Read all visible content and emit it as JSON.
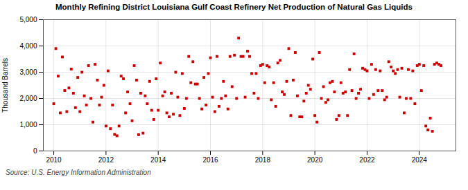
{
  "chart_data": {
    "type": "scatter",
    "title": "Monthly Refining District Louisiana Gulf Coast Refinery Net Production of Natural Gas Liquids",
    "ylabel": "Thousand Barrels",
    "source": "Source: U.S. Energy Information Administration",
    "color": "#cc0000",
    "marker": "square",
    "grid": true,
    "xlim": [
      2009.6,
      2025.4
    ],
    "xticks": [
      2010,
      2012,
      2014,
      2016,
      2018,
      2020,
      2022,
      2024
    ],
    "ylim": [
      0,
      5000
    ],
    "yticks": [
      0,
      {
        "value": 1000,
        "label": "1,000"
      },
      {
        "value": 2000,
        "label": "2,000"
      },
      {
        "value": 3000,
        "label": "3,000"
      },
      {
        "value": 4000,
        "label": "4,000"
      },
      {
        "value": 5000,
        "label": "5,000"
      }
    ],
    "x": [
      2010.0,
      2010.08,
      2010.17,
      2010.25,
      2010.33,
      2010.42,
      2010.5,
      2010.58,
      2010.67,
      2010.75,
      2010.83,
      2010.92,
      2011.0,
      2011.08,
      2011.17,
      2011.25,
      2011.33,
      2011.42,
      2011.5,
      2011.58,
      2011.67,
      2011.75,
      2011.83,
      2011.92,
      2012.0,
      2012.08,
      2012.17,
      2012.25,
      2012.33,
      2012.42,
      2012.5,
      2012.58,
      2012.67,
      2012.75,
      2012.83,
      2012.92,
      2013.0,
      2013.08,
      2013.17,
      2013.25,
      2013.33,
      2013.42,
      2013.5,
      2013.58,
      2013.67,
      2013.75,
      2013.83,
      2013.92,
      2014.0,
      2014.08,
      2014.17,
      2014.25,
      2014.33,
      2014.42,
      2014.5,
      2014.58,
      2014.67,
      2014.75,
      2014.83,
      2014.92,
      2015.0,
      2015.08,
      2015.17,
      2015.25,
      2015.33,
      2015.42,
      2015.5,
      2015.58,
      2015.67,
      2015.75,
      2015.83,
      2015.92,
      2016.0,
      2016.08,
      2016.17,
      2016.25,
      2016.33,
      2016.42,
      2016.5,
      2016.58,
      2016.67,
      2016.75,
      2016.83,
      2016.92,
      2017.0,
      2017.08,
      2017.17,
      2017.25,
      2017.33,
      2017.42,
      2017.5,
      2017.58,
      2017.67,
      2017.75,
      2017.83,
      2017.92,
      2018.0,
      2018.08,
      2018.17,
      2018.25,
      2018.33,
      2018.42,
      2018.5,
      2018.58,
      2018.67,
      2018.75,
      2018.83,
      2018.92,
      2019.0,
      2019.08,
      2019.17,
      2019.25,
      2019.33,
      2019.42,
      2019.5,
      2019.58,
      2019.67,
      2019.75,
      2019.83,
      2019.92,
      2020.0,
      2020.08,
      2020.17,
      2020.25,
      2020.33,
      2020.42,
      2020.5,
      2020.58,
      2020.67,
      2020.75,
      2020.83,
      2020.92,
      2021.0,
      2021.08,
      2021.17,
      2021.25,
      2021.33,
      2021.42,
      2021.5,
      2021.58,
      2021.67,
      2021.75,
      2021.83,
      2021.92,
      2022.0,
      2022.08,
      2022.17,
      2022.25,
      2022.33,
      2022.42,
      2022.5,
      2022.58,
      2022.67,
      2022.75,
      2022.83,
      2022.92,
      2023.0,
      2023.08,
      2023.17,
      2023.25,
      2023.33,
      2023.42,
      2023.5,
      2023.58,
      2023.67,
      2023.75,
      2023.83,
      2023.92,
      2024.0,
      2024.08,
      2024.17,
      2024.25,
      2024.33,
      2024.42,
      2024.5,
      2024.58,
      2024.67,
      2024.75,
      2024.83
    ],
    "values": [
      1800,
      3900,
      2850,
      1450,
      3580,
      2300,
      1500,
      2400,
      3120,
      2200,
      1650,
      2800,
      1500,
      3000,
      2100,
      1750,
      3250,
      2000,
      1100,
      3300,
      2700,
      1750,
      2050,
      2500,
      950,
      3050,
      850,
      1750,
      630,
      580,
      950,
      2850,
      2750,
      1450,
      2250,
      1800,
      1150,
      3250,
      2700,
      620,
      2200,
      680,
      2100,
      1800,
      2650,
      1550,
      1200,
      2750,
      1550,
      3350,
      2100,
      2250,
      1450,
      1300,
      2200,
      1400,
      3000,
      2050,
      1350,
      2950,
      1620,
      2000,
      3600,
      2600,
      3400,
      2550,
      2550,
      2000,
      1600,
      2800,
      1750,
      2950,
      3550,
      2050,
      1500,
      3600,
      1700,
      2000,
      2650,
      2100,
      1600,
      3600,
      2450,
      3650,
      2000,
      4300,
      3600,
      3600,
      2050,
      3800,
      3600,
      2950,
      2200,
      2950,
      2000,
      3250,
      3300,
      2600,
      3250,
      3200,
      1950,
      2600,
      1700,
      3350,
      3450,
      2250,
      2150,
      2650,
      3900,
      1350,
      2700,
      3750,
      2100,
      1300,
      1300,
      1900,
      2200,
      2500,
      2350,
      3500,
      1350,
      1100,
      3750,
      2000,
      2450,
      1850,
      1950,
      2600,
      2650,
      2250,
      1200,
      1350,
      2600,
      2200,
      2250,
      1350,
      3100,
      2300,
      3700,
      2000,
      2200,
      2350,
      3150,
      3100,
      3050,
      2000,
      3300,
      2150,
      3100,
      2300,
      3050,
      2300,
      1950,
      2050,
      3400,
      3200,
      3050,
      2950,
      3100,
      2050,
      3150,
      1450,
      2000,
      3100,
      2000,
      3050,
      1800,
      3250,
      3300,
      2300,
      3250,
      950,
      800,
      1250,
      750,
      3300,
      3350,
      3300,
      3250
    ]
  }
}
